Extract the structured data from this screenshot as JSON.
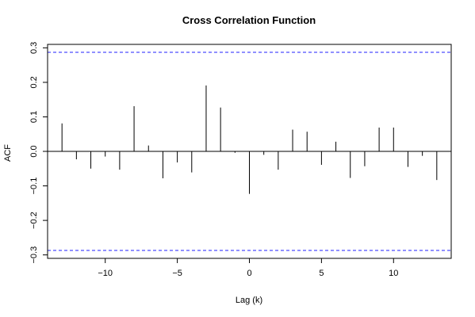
{
  "chart_data": {
    "type": "bar",
    "title": "Cross Correlation Function",
    "xlabel": "Lag (k)",
    "ylabel": "ACF",
    "xlim": [
      -14,
      14
    ],
    "ylim": [
      -0.31,
      0.31
    ],
    "xticks": [
      -10,
      -5,
      0,
      5,
      10
    ],
    "xtick_labels": [
      "−10",
      "−5",
      "0",
      "5",
      "10"
    ],
    "yticks": [
      -0.3,
      -0.2,
      -0.1,
      0.0,
      0.1,
      0.2,
      0.3
    ],
    "ytick_labels": [
      "−0.3",
      "−0.2",
      "−0.1",
      "0.0",
      "0.1",
      "0.2",
      "0.3"
    ],
    "confidence_limit": 0.287,
    "grid": false,
    "x": [
      -13,
      -12,
      -11,
      -10,
      -9,
      -8,
      -7,
      -6,
      -5,
      -4,
      -3,
      -2,
      -1,
      0,
      1,
      2,
      3,
      4,
      5,
      6,
      7,
      8,
      9,
      10,
      11,
      12,
      13
    ],
    "values": [
      0.081,
      -0.023,
      -0.05,
      -0.015,
      -0.053,
      0.131,
      0.017,
      -0.078,
      -0.032,
      -0.061,
      0.191,
      0.127,
      -0.004,
      -0.123,
      -0.01,
      -0.053,
      0.063,
      0.057,
      -0.039,
      0.028,
      -0.077,
      -0.043,
      0.069,
      0.069,
      -0.045,
      -0.013,
      -0.083
    ]
  },
  "colors": {
    "stem": "#000000",
    "confidence": "#2020ff",
    "zero_line": "#000000",
    "frame": "#000000"
  }
}
